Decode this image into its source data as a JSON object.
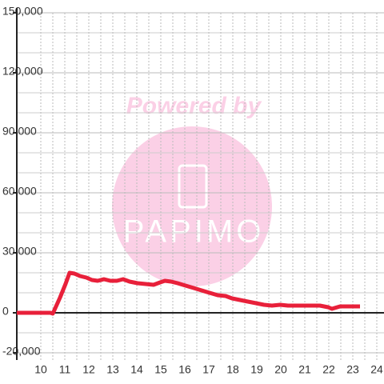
{
  "chart_data": {
    "type": "line",
    "x": [
      9,
      10.4,
      10.5,
      10.8,
      11.03,
      11.2,
      11.4,
      11.63,
      11.9,
      12.13,
      12.37,
      12.63,
      12.9,
      13.17,
      13.43,
      13.7,
      14.03,
      14.37,
      14.7,
      14.97,
      15.17,
      15.43,
      15.7,
      16.03,
      16.37,
      16.7,
      17.03,
      17.37,
      17.7,
      17.97,
      18.3,
      18.63,
      18.97,
      19.3,
      19.63,
      19.97,
      20.3,
      21.63,
      21.97,
      22.13,
      22.47,
      23.3
    ],
    "series": [
      {
        "color": "#e8203a",
        "values": [
          0,
          0,
          -400,
          7600,
          14400,
          20000,
          19600,
          18400,
          17600,
          16400,
          16000,
          16800,
          16000,
          16000,
          16800,
          15600,
          14800,
          14400,
          14000,
          15200,
          16000,
          15600,
          14800,
          13600,
          12400,
          11200,
          10000,
          8800,
          8400,
          7200,
          6400,
          5600,
          4800,
          4000,
          3600,
          4000,
          3600,
          3600,
          2800,
          2000,
          3200,
          3200
        ]
      }
    ],
    "xlim": [
      9,
      24.3
    ],
    "xticks": [
      10,
      11,
      12,
      13,
      14,
      15,
      16,
      17,
      18,
      19,
      20,
      21,
      22,
      23,
      24
    ],
    "xminorticks": [
      10.5,
      11.5,
      12.5,
      13.5,
      14.5,
      15.5,
      16.5,
      17.5,
      18.5,
      19.5,
      20.5,
      21.5,
      22.5,
      23.5
    ],
    "ylim": [
      -23600,
      150000
    ],
    "yticks": [
      {
        "value": -20000,
        "label": "-20,000"
      },
      0,
      {
        "value": 30000,
        "label": "30,000"
      },
      {
        "value": 60000,
        "label": "60,000"
      },
      {
        "value": 90000,
        "label": "90,000"
      },
      {
        "value": 120000,
        "label": "120,000"
      },
      {
        "value": 150000,
        "label": "150,000"
      }
    ],
    "yminorticks": [
      -10000,
      10000,
      20000,
      40000,
      50000,
      70000,
      80000,
      100000,
      110000,
      130000,
      140000
    ],
    "grid": true
  },
  "watermark": {
    "top": "Powered by",
    "logo": "PAPIMO"
  }
}
